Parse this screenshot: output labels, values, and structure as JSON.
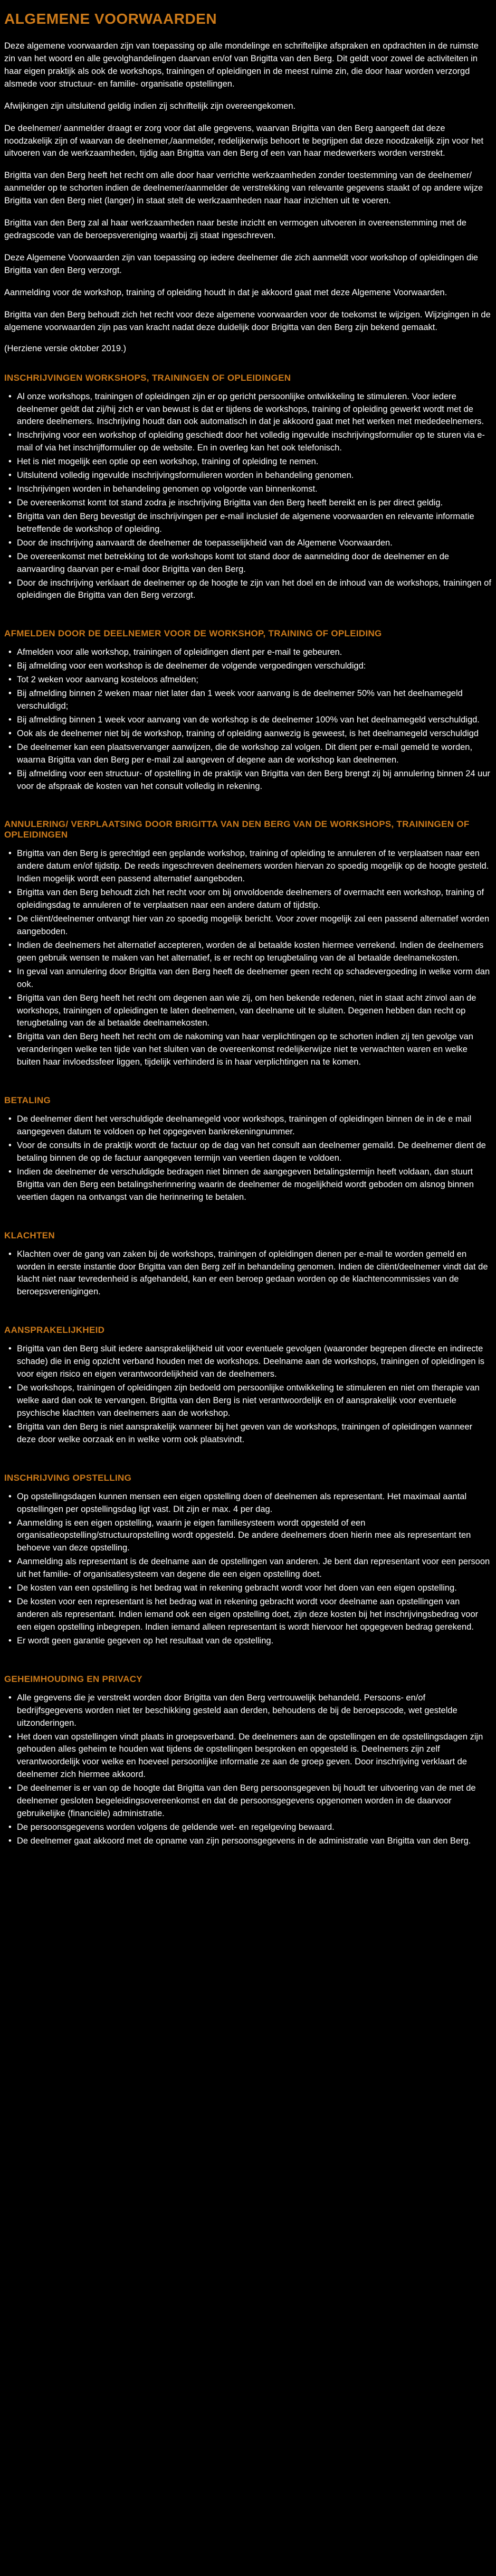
{
  "title": "ALGEMENE VOORWAARDEN",
  "intro": {
    "p1": "Deze algemene voorwaarden zijn van toepassing op alle mondelinge en schriftelijke afspraken en opdrachten in de ruimste zin van het woord en alle gevolghandelingen daarvan en/of van Brigitta van den Berg. Dit geldt voor zowel de activiteiten in haar eigen praktijk als ook de workshops, trainingen of opleidingen in de meest ruime zin, die door haar worden verzorgd alsmede voor structuur- en familie- organisatie opstellingen.",
    "p2": "Afwijkingen zijn uitsluitend geldig indien zij schriftelijk zijn overeengekomen.",
    "p3": "De deelnemer/ aanmelder draagt er zorg voor dat alle gegevens, waarvan Brigitta van den Berg aangeeft dat deze noodzakelijk zijn of waarvan de deelnemer,/aanmelder, redelijkerwijs behoort te begrijpen dat deze noodzakelijk zijn voor het uitvoeren van de werkzaamheden, tijdig aan Brigitta van den Berg of een van haar medewerkers worden verstrekt.",
    "p4": "Brigitta van den Berg heeft het recht om alle door haar verrichte werkzaamheden zonder toestemming van de deelnemer/ aanmelder op te schorten indien de deelnemer/aanmelder de verstrekking van relevante gegevens staakt of op andere wijze Brigitta van den Berg niet (langer) in staat stelt de werkzaamheden naar haar inzichten uit te voeren.",
    "p5": "Brigitta van den Berg zal al haar werkzaamheden naar beste inzicht en vermogen uitvoeren in overeenstemming met de gedragscode van de beroepsvereniging waarbij zij staat ingeschreven.",
    "p6": "Deze Algemene Voorwaarden zijn van toepassing op iedere deelnemer die zich aanmeldt voor workshop of opleidingen die Brigitta van den Berg verzorgt.",
    "p7": "Aanmelding voor de workshop, training of opleiding houdt in dat je akkoord gaat met deze Algemene Voorwaarden.",
    "p8": "Brigitta van den Berg behoudt zich het recht voor deze algemene voorwaarden voor de toekomst te wijzigen. Wijzigingen in de algemene voorwaarden zijn pas van kracht nadat deze duidelijk door Brigitta van den Berg zijn bekend gemaakt."
  },
  "revision": "(Herziene versie oktober 2019.)",
  "sections": [
    {
      "title": "INSCHRIJVINGEN WORKSHOPS, TRAININGEN OF OPLEIDINGEN",
      "items": [
        "Al onze workshops, trainingen of opleidingen zijn er op gericht persoonlijke ontwikkeling te stimuleren. Voor iedere deelnemer geldt dat zij/hij zich er van bewust is dat er tijdens de workshops, training of opleiding gewerkt wordt met de andere deelnemers. Inschrijving houdt dan ook automatisch in dat je akkoord gaat met het werken met mededeelnemers.",
        "Inschrijving voor een workshop of opleiding geschiedt door het volledig ingevulde inschrijvingsformulier op te sturen via e-mail of via het inschrijfformulier op de website. En in overleg kan het ook telefonisch.",
        "Het is niet mogelijk een optie op een workshop, training of opleiding te nemen.",
        "Uitsluitend volledig ingevulde inschrijvingsformulieren worden in behandeling genomen.",
        "Inschrijvingen worden in behandeling genomen op volgorde van binnenkomst.",
        "De overeenkomst komt tot stand zodra je inschrijving Brigitta van den Berg heeft bereikt en is per direct geldig.",
        "Brigitta van den Berg bevestigt de inschrijvingen per e-mail inclusief de algemene voorwaarden en relevante informatie betreffende de workshop of opleiding.",
        "Door de inschrijving aanvaardt de deelnemer de toepasselijkheid van de Algemene Voorwaarden.",
        "De overeenkomst met betrekking tot de workshops komt tot stand door de aanmelding door de deelnemer en de aanvaarding daarvan per e-mail door Brigitta van den Berg.",
        "Door de inschrijving verklaart de deelnemer op de hoogte te zijn van het doel en de inhoud van de workshops, trainingen of opleidingen die Brigitta van den Berg verzorgt."
      ]
    },
    {
      "title": "AFMELDEN DOOR DE DEELNEMER VOOR DE WORKSHOP, TRAINING OF OPLEIDING",
      "items": [
        "Afmelden voor alle workshop, trainingen of opleidingen dient per e-mail te gebeuren.",
        "Bij afmelding voor een workshop is de deelnemer de volgende vergoedingen verschuldigd:",
        "Tot 2 weken voor aanvang kosteloos afmelden;",
        "Bij afmelding binnen 2 weken maar niet later dan 1 week voor aanvang is de deelnemer 50% van het deelnamegeld verschuldigd;",
        "Bij afmelding binnen 1 week voor aanvang van de workshop is de deelnemer 100% van het deelnamegeld verschuldigd.",
        "Ook als de deelnemer niet bij de workshop, training of opleiding aanwezig is geweest, is het deelnamegeld verschuldigd",
        "De deelnemer kan een plaatsvervanger aanwijzen, die de workshop zal volgen. Dit dient per e-mail gemeld te worden, waarna Brigitta van den Berg per e-mail zal aangeven of degene aan de workshop kan deelnemen.",
        "Bij afmelding voor een structuur- of opstelling in de praktijk van Brigitta van den Berg brengt zij bij annulering binnen 24 uur voor de afspraak de kosten van het consult volledig in rekening."
      ]
    },
    {
      "title": "ANNULERING/ VERPLAATSING DOOR BRIGITTA VAN DEN BERG VAN DE WORKSHOPS, TRAININGEN OF OPLEIDINGEN",
      "items": [
        "Brigitta van den Berg is gerechtigd een geplande workshop, training of opleiding te annuleren of te verplaatsen naar een andere datum en/of tijdstip. De reeds ingeschreven deelnemers worden hiervan zo spoedig mogelijk op de hoogte gesteld. Indien mogelijk wordt een passend alternatief aangeboden.",
        "Brigitta van den Berg behoudt zich het recht voor om bij onvoldoende deelnemers of overmacht een workshop, training of opleidingsdag te annuleren of te verplaatsen naar een andere datum of tijdstip.",
        "De cliënt/deelnemer ontvangt hier van zo spoedig mogelijk bericht. Voor zover mogelijk zal een passend alternatief worden aangeboden.",
        "Indien de deelnemers het alternatief accepteren, worden de al betaalde kosten hiermee verrekend. Indien de deelnemers geen gebruik wensen te maken van het alternatief, is er recht op terugbetaling van de al betaalde deelnamekosten.",
        "In geval van annulering door Brigitta van den Berg heeft de deelnemer geen recht op schadevergoeding in welke vorm dan ook.",
        "Brigitta van den Berg heeft het recht om degenen aan wie zij, om hen bekende redenen, niet in staat acht zinvol aan de workshops, trainingen of opleidingen te laten deelnemen, van deelname uit te sluiten. Degenen hebben dan recht op terugbetaling van de al betaalde deelnamekosten.",
        "Brigitta van den Berg heeft het recht om de nakoming van haar verplichtingen op te schorten indien zij ten gevolge van veranderingen welke ten tijde van het sluiten van de overeenkomst redelijkerwijze niet te verwachten waren en welke buiten haar invloedssfeer liggen, tijdelijk verhinderd is in haar verplichtingen na te komen."
      ]
    },
    {
      "title": "BETALING",
      "items": [
        "De deelnemer dient het verschuldigde deelnamegeld voor workshops, trainingen of opleidingen binnen de in de e mail aangegeven datum te voldoen op het opgegeven bankrekeningnummer.",
        "Voor de consults in de praktijk wordt de factuur op de dag van het consult aan deelnemer gemaild. De deelnemer dient de betaling binnen de op de factuur aangegeven termijn van veertien dagen te voldoen.",
        "Indien de deelnemer de verschuldigde bedragen niet binnen de aangegeven betalingstermijn heeft voldaan, dan stuurt Brigitta van den Berg een betalingsherinnering waarin de deelnemer de mogelijkheid wordt geboden om alsnog binnen veertien dagen na ontvangst van die herinnering te betalen."
      ]
    },
    {
      "title": "KLACHTEN",
      "items": [
        "Klachten over de gang van zaken bij de workshops, trainingen of opleidingen dienen per e-mail te worden gemeld en worden in eerste instantie door Brigitta van den Berg zelf in behandeling genomen. Indien de cliënt/deelnemer vindt dat de klacht niet naar tevredenheid is afgehandeld, kan er een beroep gedaan worden op de klachtencommissies van de beroepsverenigingen."
      ]
    },
    {
      "title": "AANSPRAKELIJKHEID",
      "items": [
        "Brigitta van den Berg sluit iedere aansprakelijkheid uit voor eventuele gevolgen (waaronder begrepen directe en indirecte schade) die in enig opzicht verband houden met de workshops. Deelname aan de workshops, trainingen of opleidingen is voor eigen risico en eigen verantwoordelijkheid van de deelnemers.",
        "De workshops, trainingen of opleidingen zijn bedoeld om persoonlijke ontwikkeling te stimuleren en niet om therapie van welke aard dan ook te vervangen. Brigitta van den Berg is niet verantwoordelijk en of aansprakelijk voor eventuele psychische klachten van deelnemers aan de workshop.",
        "Brigitta van den Berg is niet aansprakelijk wanneer bij het geven van de workshops, trainingen of opleidingen wanneer deze door welke oorzaak en in welke vorm ook plaatsvindt."
      ]
    },
    {
      "title": "INSCHRIJVING OPSTELLING",
      "items": [
        "Op opstellingsdagen kunnen mensen een eigen opstelling doen of deelnemen als representant. Het maximaal aantal opstellingen per opstellingsdag ligt vast. Dit zijn er max. 4 per dag.",
        "Aanmelding is een eigen opstelling, waarin je eigen familiesysteem wordt opgesteld of een organisatieopstelling/structuuropstelling wordt opgesteld. De andere deelnemers doen hierin mee als representant ten behoeve van deze opstelling.",
        "Aanmelding als representant is de deelname aan de opstellingen van anderen. Je bent dan representant voor een persoon uit het familie- of organisatiesysteem van degene die een eigen opstelling doet.",
        "De kosten van een opstelling is het bedrag wat in rekening gebracht wordt voor het doen van een eigen opstelling.",
        "De kosten voor een representant is het bedrag wat in rekening gebracht wordt voor deelname aan opstellingen van anderen als representant. Indien iemand ook een eigen opstelling doet, zijn deze kosten bij het inschrijvingsbedrag voor een eigen opstelling inbegrepen. Indien iemand alleen representant is wordt hiervoor het opgegeven bedrag gerekend.",
        "Er wordt geen garantie gegeven op het resultaat van de opstelling."
      ]
    },
    {
      "title": "GEHEIMHOUDING EN PRIVACY",
      "items": [
        "Alle gegevens die je verstrekt worden door Brigitta van den Berg vertrouwelijk behandeld. Persoons- en/of bedrijfsgegevens worden niet ter beschikking gesteld aan derden, behoudens de bij de beroepscode, wet gestelde uitzonderingen.",
        "Het doen van opstellingen vindt plaats in groepsverband. De deelnemers aan de opstellingen en de opstellingsdagen zijn gehouden alles geheim te houden wat tijdens de opstellingen besproken en opgesteld is. Deelnemers zijn zelf verantwoordelijk voor welke en hoeveel persoonlijke informatie ze aan de groep geven. Door inschrijving verklaart de deelnemer zich hiermee akkoord.",
        "De deelnemer is er van op de hoogte dat Brigitta van den Berg persoonsgegeven bij houdt ter uitvoering van de met de deelnemer gesloten begeleidingsovereenkomst en dat de persoonsgegevens opgenomen worden in de daarvoor gebruikelijke (financiële) administratie.",
        "De persoonsgegevens worden volgens de geldende wet- en regelgeving bewaard.",
        "De deelnemer gaat akkoord met de opname van zijn persoonsgegevens in de administratie van Brigitta van den Berg."
      ]
    }
  ]
}
